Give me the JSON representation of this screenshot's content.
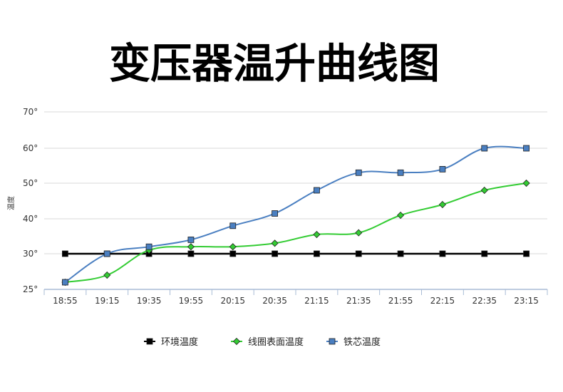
{
  "chart_data": {
    "type": "line",
    "title": "变压器温升曲线图",
    "ylabel": "温度",
    "xlabel": "",
    "categories": [
      "18:55",
      "19:15",
      "19:35",
      "19:55",
      "20:15",
      "20:35",
      "21:15",
      "21:35",
      "21:55",
      "22:15",
      "22:35",
      "23:15"
    ],
    "ylim": [
      25,
      70
    ],
    "yticks": [
      25,
      30,
      40,
      50,
      60,
      70
    ],
    "ytick_labels": [
      "25°",
      "30°",
      "40°",
      "50°",
      "60°",
      "70°"
    ],
    "grid": true,
    "legend_position": "bottom",
    "series": [
      {
        "name": "环境温度",
        "color": "#000000",
        "marker": "square",
        "smooth": false,
        "values": [
          30,
          30,
          30,
          30,
          30,
          30,
          30,
          30,
          30,
          30,
          30,
          30
        ]
      },
      {
        "name": "线圈表面温度",
        "color": "#33cc33",
        "marker": "diamond",
        "smooth": true,
        "values": [
          26,
          27,
          31,
          32,
          32,
          33,
          35.5,
          36,
          41,
          44,
          48,
          50
        ]
      },
      {
        "name": "铁芯温度",
        "color": "#4a7fc1",
        "marker": "square",
        "smooth": true,
        "values": [
          26,
          30,
          32,
          34,
          38,
          41.5,
          48,
          53,
          53,
          54,
          60,
          60
        ]
      }
    ]
  }
}
